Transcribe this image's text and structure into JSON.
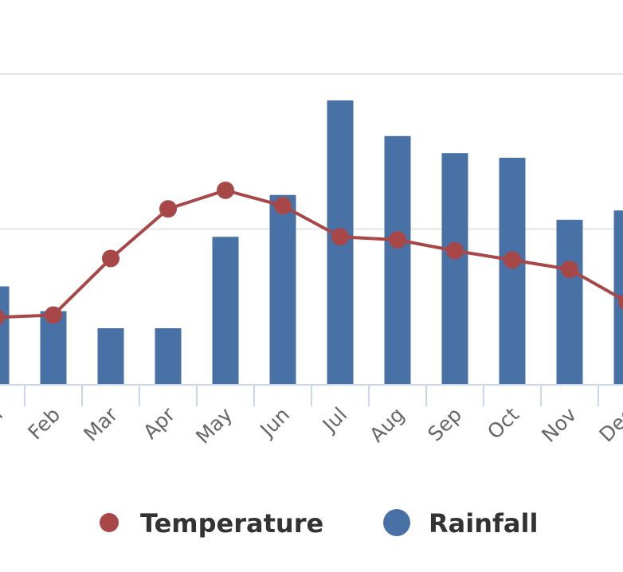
{
  "chart_data": {
    "type": "bar+line",
    "categories": [
      "Jan",
      "Feb",
      "Mar",
      "Apr",
      "May",
      "Jun",
      "Jul",
      "Aug",
      "Sep",
      "Oct",
      "Nov",
      "Dec"
    ],
    "series": [
      {
        "name": "Temperature",
        "type": "line",
        "color": "#a84747",
        "values": [
          43,
          44.5,
          81,
          113,
          125,
          115,
          95,
          93,
          86,
          80,
          74,
          53
        ]
      },
      {
        "name": "Rainfall",
        "type": "bar",
        "color": "#4872a6",
        "values": [
          63,
          47,
          36,
          36,
          95,
          122,
          183,
          160,
          149,
          146,
          106,
          112
        ]
      }
    ],
    "ylim": [
      0,
      200
    ],
    "gridlines": [
      100,
      200
    ],
    "title": "",
    "xlabel": "",
    "ylabel": "",
    "legend_position": "bottom-center"
  }
}
